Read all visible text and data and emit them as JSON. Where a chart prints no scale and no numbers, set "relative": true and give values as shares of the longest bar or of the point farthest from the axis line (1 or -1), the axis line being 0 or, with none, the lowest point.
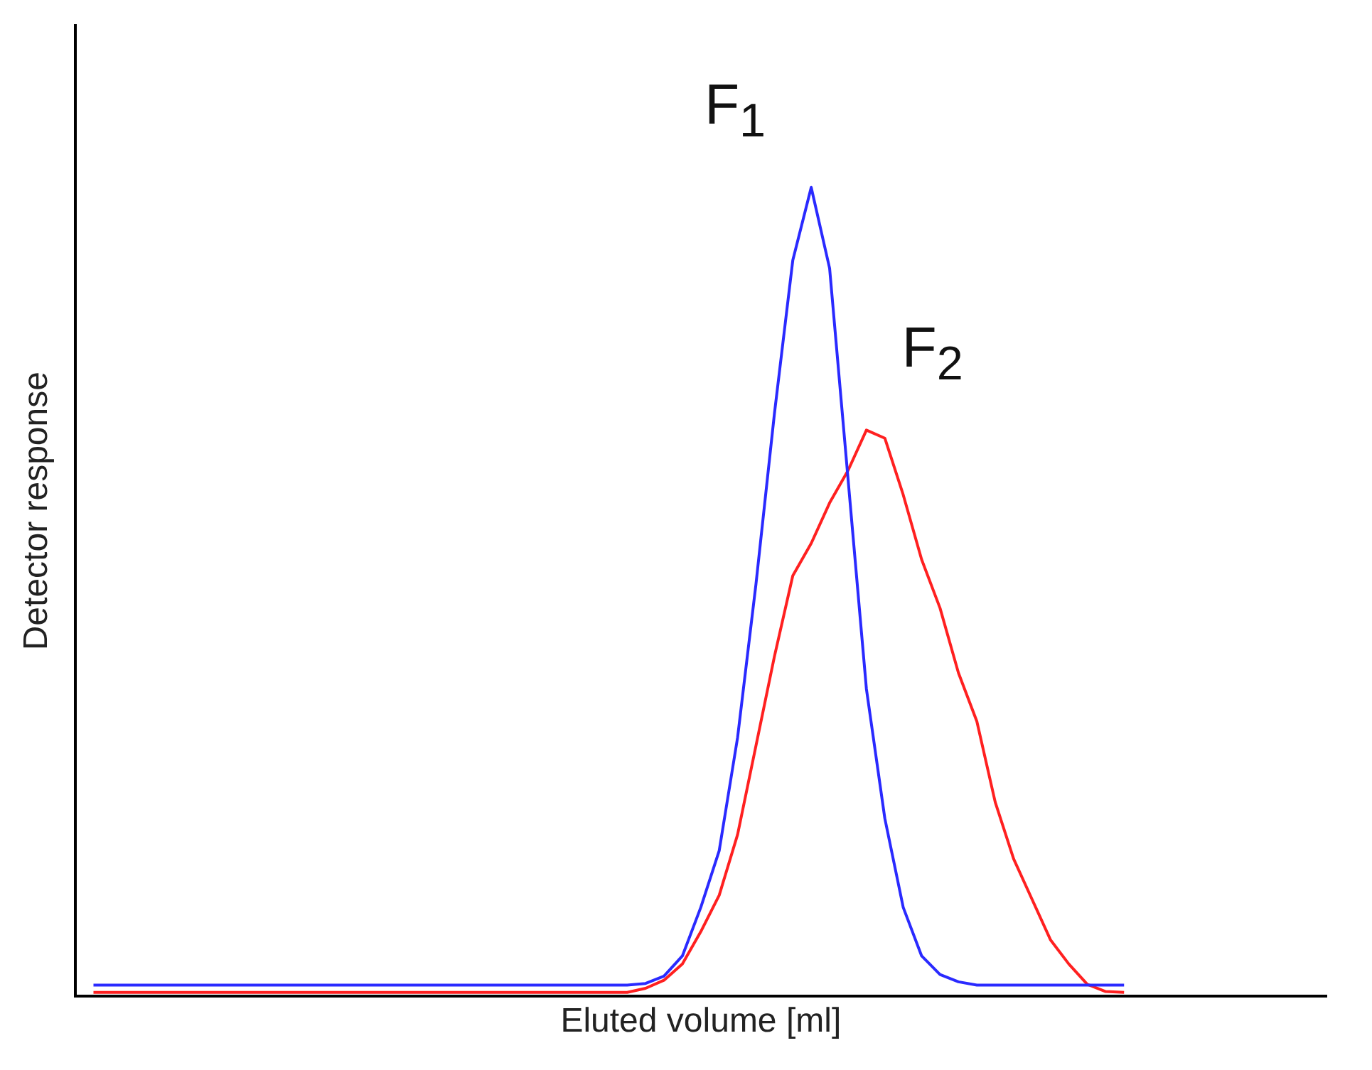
{
  "chart_data": {
    "type": "line",
    "relative": true,
    "xlabel": "Eluted volume [ml]",
    "ylabel": "Detector response",
    "legend": false,
    "grid": false,
    "marker": "none",
    "line_style": "solid",
    "categories": [
      null,
      null,
      null,
      null,
      null,
      null,
      null,
      null,
      null,
      null,
      null,
      null,
      null,
      null,
      null,
      null,
      null,
      null,
      null,
      null,
      null,
      null,
      null,
      null,
      null,
      null,
      null,
      null,
      null,
      null,
      null,
      null,
      null,
      null,
      null,
      null,
      null,
      null,
      null,
      null,
      null,
      null,
      null,
      null,
      null,
      null,
      null,
      null,
      null,
      null,
      null,
      null,
      null,
      null,
      null,
      null,
      null,
      null,
      null,
      null,
      null,
      null,
      null,
      null,
      null,
      null,
      null,
      null,
      null
    ],
    "series": [
      {
        "name": "F$_{1}$",
        "color": "#2a2aff",
        "values": [
          null,
          0.014,
          0.014,
          0.014,
          0.014,
          0.014,
          0.014,
          0.014,
          0.014,
          0.014,
          0.014,
          0.014,
          0.014,
          0.014,
          0.014,
          0.014,
          0.014,
          0.014,
          0.014,
          0.014,
          0.014,
          0.014,
          0.014,
          0.014,
          0.014,
          0.014,
          0.014,
          0.014,
          0.014,
          0.014,
          0.014,
          0.016,
          0.025,
          0.05,
          0.11,
          0.18,
          0.32,
          0.51,
          0.72,
          0.91,
          1,
          0.9,
          0.64,
          0.38,
          0.22,
          0.11,
          0.05,
          0.027,
          0.018,
          0.014,
          0.014,
          0.014,
          0.014,
          0.014,
          0.014,
          0.014,
          0.014,
          0.014,
          null,
          null,
          null,
          null,
          null,
          null,
          null,
          null,
          null,
          null,
          null
        ]
      },
      {
        "name": "F$_{2}$",
        "color": "#ff2020",
        "values": [
          null,
          0.005,
          0.005,
          0.005,
          0.005,
          0.005,
          0.005,
          0.005,
          0.005,
          0.005,
          0.005,
          0.005,
          0.005,
          0.005,
          0.005,
          0.005,
          0.005,
          0.005,
          0.005,
          0.005,
          0.005,
          0.005,
          0.005,
          0.005,
          0.005,
          0.005,
          0.005,
          0.005,
          0.005,
          0.005,
          0.005,
          0.01,
          0.02,
          0.04,
          0.08,
          0.125,
          0.2,
          0.31,
          0.42,
          0.52,
          0.56,
          0.61,
          0.65,
          0.7,
          0.69,
          0.62,
          0.54,
          0.48,
          0.4,
          0.34,
          0.24,
          0.17,
          0.12,
          0.07,
          0.04,
          0.015,
          0.006,
          0.005,
          null,
          null,
          null,
          null,
          null,
          null,
          null,
          null,
          null,
          null,
          null
        ]
      }
    ]
  }
}
